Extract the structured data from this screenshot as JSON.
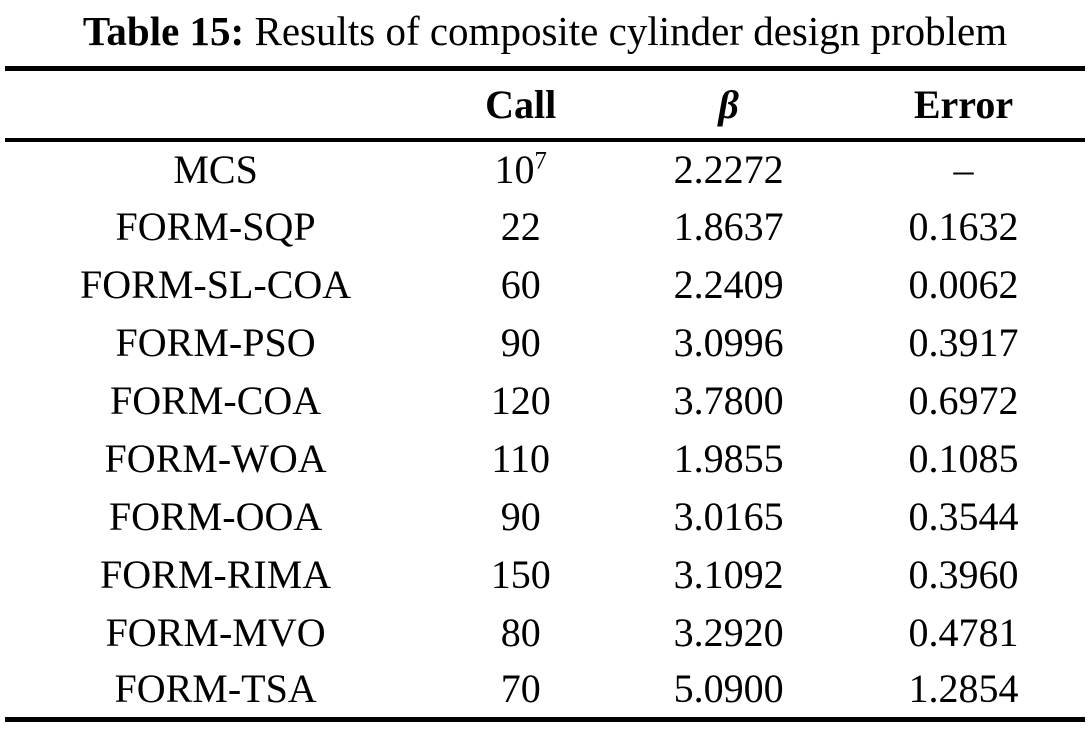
{
  "page": {
    "background_color": "#ffffff",
    "text_color": "#000000"
  },
  "caption": {
    "label": "Table 15:",
    "text": " Results of composite cylinder design problem"
  },
  "table": {
    "headers": {
      "method": "",
      "call": "Call",
      "beta": "β",
      "error": "Error"
    },
    "rows": [
      {
        "method": "MCS",
        "call": "10",
        "call_sup": "7",
        "beta": "2.2272",
        "error": "–"
      },
      {
        "method": "FORM-SQP",
        "call": "22",
        "call_sup": "",
        "beta": "1.8637",
        "error": "0.1632"
      },
      {
        "method": "FORM-SL-COA",
        "call": "60",
        "call_sup": "",
        "beta": "2.2409",
        "error": "0.0062"
      },
      {
        "method": "FORM-PSO",
        "call": "90",
        "call_sup": "",
        "beta": "3.0996",
        "error": "0.3917"
      },
      {
        "method": "FORM-COA",
        "call": "120",
        "call_sup": "",
        "beta": "3.7800",
        "error": "0.6972"
      },
      {
        "method": "FORM-WOA",
        "call": "110",
        "call_sup": "",
        "beta": "1.9855",
        "error": "0.1085"
      },
      {
        "method": "FORM-OOA",
        "call": "90",
        "call_sup": "",
        "beta": "3.0165",
        "error": "0.3544"
      },
      {
        "method": "FORM-RIMA",
        "call": "150",
        "call_sup": "",
        "beta": "3.1092",
        "error": "0.3960"
      },
      {
        "method": "FORM-MVO",
        "call": "80",
        "call_sup": "",
        "beta": "3.2920",
        "error": "0.4781"
      },
      {
        "method": "FORM-TSA",
        "call": "70",
        "call_sup": "",
        "beta": "5.0900",
        "error": "1.2854"
      }
    ]
  }
}
